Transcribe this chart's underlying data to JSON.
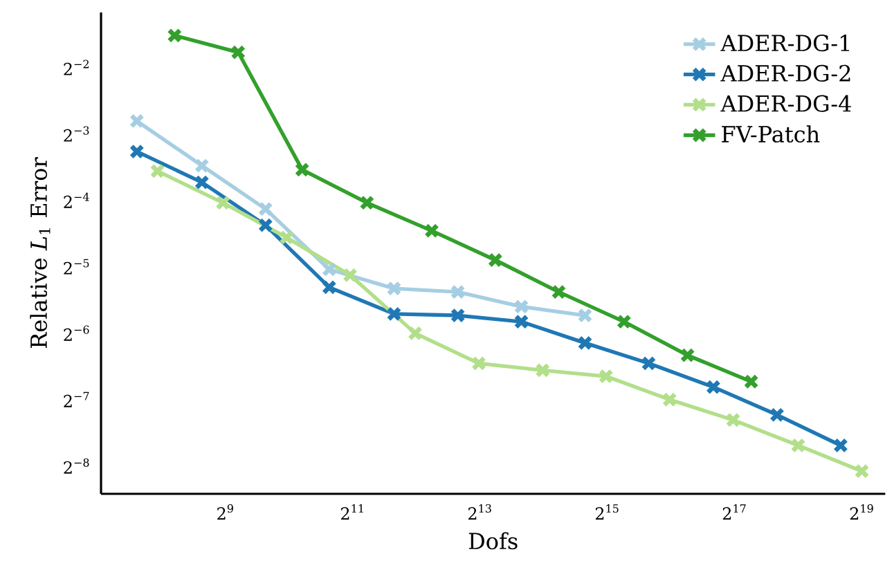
{
  "chart_data": {
    "type": "line",
    "xlabel": "Dofs",
    "ylabel": "Relative *L*$_{1}$ Error",
    "log": "xy",
    "marker": "cross",
    "line_style": "solid",
    "legend": "top right",
    "grid": false,
    "xlim": [
      132,
      676000
    ],
    "ylim": [
      0.00292,
      0.444
    ],
    "xticks": [
      {
        "value": 512,
        "label": "2$^{9}$"
      },
      {
        "value": 2048,
        "label": "2$^{11}$"
      },
      {
        "value": 8192,
        "label": "2$^{13}$"
      },
      {
        "value": 32768,
        "label": "2$^{15}$"
      },
      {
        "value": 131072,
        "label": "2$^{17}$"
      },
      {
        "value": 524288,
        "label": "2$^{19}$"
      }
    ],
    "yticks": [
      {
        "value": 0.00390625,
        "label": "2$^{−8}$"
      },
      {
        "value": 0.0078125,
        "label": "2$^{−7}$"
      },
      {
        "value": 0.015625,
        "label": "2$^{−6}$"
      },
      {
        "value": 0.03125,
        "label": "2$^{−5}$"
      },
      {
        "value": 0.0625,
        "label": "2$^{−4}$"
      },
      {
        "value": 0.125,
        "label": "2$^{−3}$"
      },
      {
        "value": 0.25,
        "label": "2$^{−2}$"
      }
    ],
    "series": [
      {
        "name": "ADER-DG-1",
        "color": "#a6cee3",
        "x": [
          195,
          396,
          792,
          1585,
          3210,
          6430,
          12850,
          25700
        ],
        "values": [
          0.143,
          0.0897,
          0.0571,
          0.0304,
          0.0249,
          0.024,
          0.0206,
          0.0188
        ]
      },
      {
        "name": "ADER-DG-2",
        "color": "#1f78b4",
        "x": [
          195,
          396,
          792,
          1585,
          3210,
          6430,
          12850,
          25700,
          51400,
          104000,
          208000,
          416000
        ],
        "values": [
          0.104,
          0.0754,
          0.0482,
          0.0252,
          0.0191,
          0.0188,
          0.0176,
          0.0141,
          0.0114,
          0.0089,
          0.00666,
          0.00484
        ]
      },
      {
        "name": "ADER-DG-4",
        "color": "#b2df8a",
        "x": [
          244,
          498,
          996,
          1990,
          4040,
          8080,
          16200,
          32300,
          64600,
          129000,
          262000,
          524000
        ],
        "values": [
          0.0848,
          0.0609,
          0.0424,
          0.0286,
          0.0156,
          0.0114,
          0.0106,
          0.00996,
          0.00781,
          0.00631,
          0.00484,
          0.0037
        ]
      },
      {
        "name": "FV-Patch",
        "color": "#33a02c",
        "x": [
          294,
          588,
          1180,
          2390,
          4840,
          9670,
          19300,
          39300,
          78500,
          157000
        ],
        "values": [
          0.349,
          0.293,
          0.086,
          0.0609,
          0.0455,
          0.0335,
          0.024,
          0.0176,
          0.0124,
          0.00942
        ]
      }
    ]
  }
}
